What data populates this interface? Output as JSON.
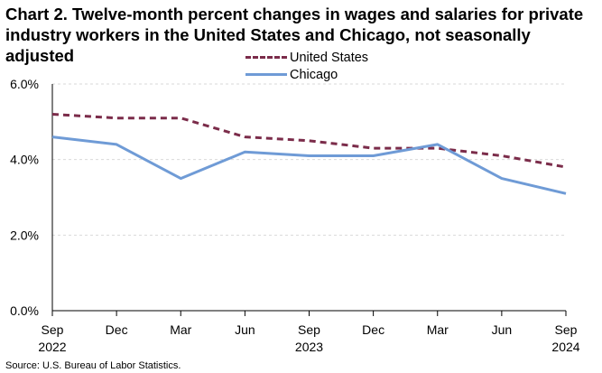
{
  "title": "Chart 2. Twelve-month percent changes in wages and salaries for private industry workers in the United States and Chicago, not seasonally adjusted",
  "source": "Source: U.S. Bureau of Labor Statistics.",
  "legend": {
    "us": "United States",
    "chicago": "Chicago"
  },
  "colors": {
    "us": "#7b2c4a",
    "chicago": "#6f9bd6",
    "grid": "#d9d9d9",
    "axis": "#000000"
  },
  "chart_data": {
    "type": "line",
    "title": "Chart 2. Twelve-month percent changes in wages and salaries for private industry workers in the United States and Chicago, not seasonally adjusted",
    "xlabel": "",
    "ylabel": "",
    "ylim": [
      0,
      6
    ],
    "yticks": [
      "0.0%",
      "2.0%",
      "4.0%",
      "6.0%"
    ],
    "categories": [
      "Sep",
      "Dec",
      "Mar",
      "Jun",
      "Sep",
      "Dec",
      "Mar",
      "Jun",
      "Sep"
    ],
    "year_labels": [
      {
        "index": 0,
        "label": "2022"
      },
      {
        "index": 4,
        "label": "2023"
      },
      {
        "index": 8,
        "label": "2024"
      }
    ],
    "series": [
      {
        "name": "United States",
        "style": "dashed",
        "values": [
          5.2,
          5.1,
          5.1,
          4.6,
          4.5,
          4.3,
          4.3,
          4.1,
          3.8
        ]
      },
      {
        "name": "Chicago",
        "style": "solid",
        "values": [
          4.6,
          4.4,
          3.5,
          4.2,
          4.1,
          4.1,
          4.4,
          3.5,
          3.1
        ]
      }
    ],
    "legend_position": "top-center",
    "grid": true
  }
}
